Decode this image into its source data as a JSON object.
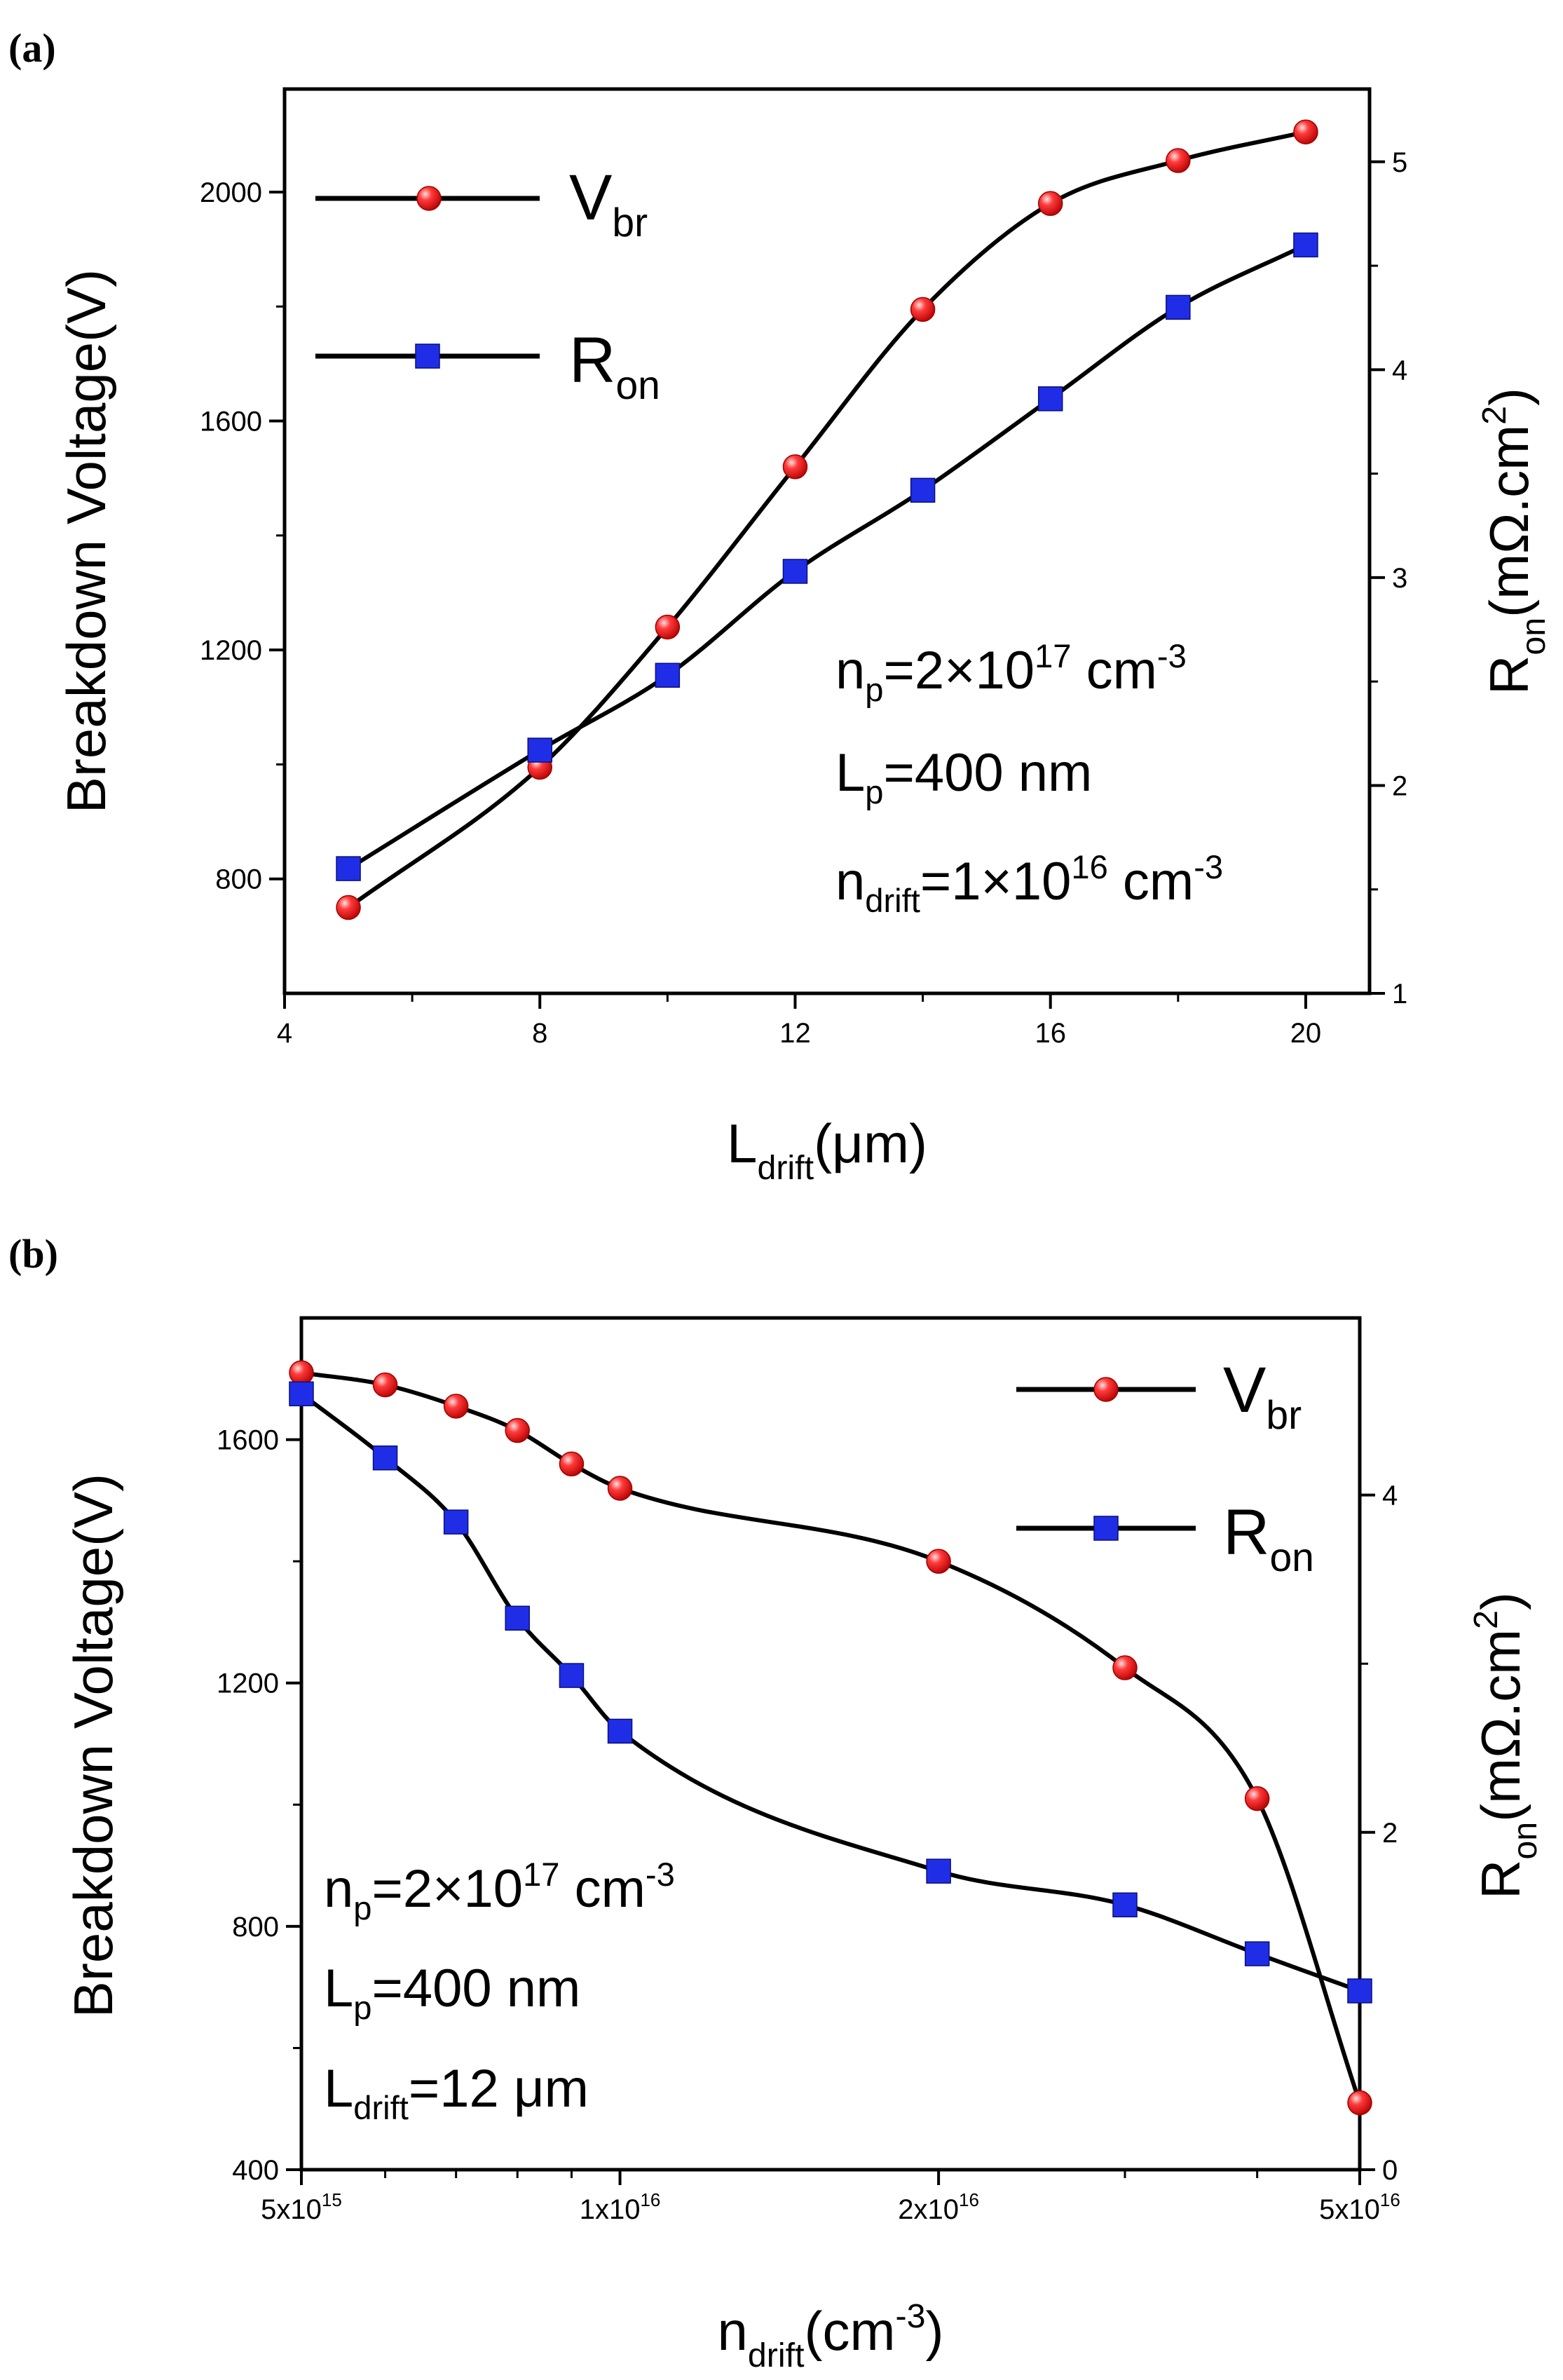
{
  "chart_data": [
    {
      "panel": "(a)",
      "type": "line",
      "xlabel": {
        "main": "L",
        "sub": "drift",
        "rest": "(μm)"
      },
      "ylabel_left": "Breakdown Voltage(V)",
      "ylabel_right": {
        "main": "R",
        "sub": "on",
        "rest": "(mΩ.cm",
        "sup": "2",
        "close": ")"
      },
      "x_ticks": [
        "4",
        "8",
        "12",
        "16",
        "20"
      ],
      "x_tick_values": [
        4,
        8,
        12,
        16,
        20
      ],
      "y_left_ticks": [
        "800",
        "1200",
        "1600",
        "2000"
      ],
      "y_left_tick_values": [
        800,
        1200,
        1600,
        2000
      ],
      "y_right_ticks": [
        "1",
        "2",
        "3",
        "4",
        "5"
      ],
      "y_right_tick_values": [
        1,
        2,
        3,
        4,
        5
      ],
      "xlim": [
        4,
        21
      ],
      "ylim_left": [
        600,
        2180
      ],
      "ylim_right": [
        1,
        5.35
      ],
      "legend_position": "top-left",
      "series": [
        {
          "name": "V",
          "name_sub": "br",
          "axis": "left",
          "marker": "circle",
          "color": "#e8151b",
          "x": [
            5,
            8,
            10,
            12,
            14,
            16,
            18,
            20
          ],
          "y": [
            750,
            995,
            1240,
            1520,
            1795,
            1980,
            2055,
            2105
          ]
        },
        {
          "name": "R",
          "name_sub": "on",
          "axis": "right",
          "marker": "square",
          "color": "#1f2ee6",
          "x": [
            5,
            8,
            10,
            12,
            14,
            16,
            18,
            20
          ],
          "y": [
            1.6,
            2.17,
            2.53,
            3.03,
            3.42,
            3.86,
            4.3,
            4.6
          ]
        }
      ],
      "annotations": [
        {
          "main": "n",
          "sub": "p",
          "mid": "=2×10",
          "sup": "17",
          "rest": " cm",
          "sup2": "-3"
        },
        {
          "main": "L",
          "sub": "p",
          "mid": "=400 nm",
          "sup": "",
          "rest": "",
          "sup2": ""
        },
        {
          "main": "n",
          "sub": "drift",
          "mid": "=1×10",
          "sup": "16",
          "rest": " cm",
          "sup2": "-3"
        }
      ]
    },
    {
      "panel": "(b)",
      "type": "line",
      "x_scale": "log",
      "xlabel": {
        "main": "n",
        "sub": "drift",
        "rest": "(cm",
        "sup": "-3",
        "close": ")"
      },
      "ylabel_left": "Breakdown Voltage(V)",
      "ylabel_right": {
        "main": "R",
        "sub": "on",
        "rest": "(mΩ.cm",
        "sup": "2",
        "close": ")"
      },
      "x_ticks": [
        {
          "mant": "5x10",
          "exp": "15"
        },
        {
          "mant": "1x10",
          "exp": "16"
        },
        {
          "mant": "2x10",
          "exp": "16"
        },
        {
          "mant": "5x10",
          "exp": "16"
        }
      ],
      "x_tick_values": [
        5000000000000000.0,
        1e+16,
        2e+16,
        5e+16
      ],
      "x_minor_ticks": [
        6000000000000000.0,
        7000000000000000.0,
        8000000000000000.0,
        9000000000000000.0,
        3e+16,
        4e+16
      ],
      "y_left_ticks": [
        "400",
        "800",
        "1200",
        "1600"
      ],
      "y_left_tick_values": [
        400,
        800,
        1200,
        1600
      ],
      "y_right_ticks": [
        "0",
        "2",
        "4"
      ],
      "y_right_tick_values": [
        0,
        2,
        4
      ],
      "xlim": [
        5000000000000000.0,
        5e+16
      ],
      "ylim_left": [
        400,
        1800
      ],
      "ylim_right": [
        0,
        5.05
      ],
      "legend_position": "top-right",
      "series": [
        {
          "name": "V",
          "name_sub": "br",
          "axis": "left",
          "marker": "circle",
          "color": "#e8151b",
          "x": [
            5000000000000000.0,
            6000000000000000.0,
            7000000000000000.0,
            8000000000000000.0,
            9000000000000000.0,
            1e+16,
            2e+16,
            3e+16,
            4e+16,
            5e+16
          ],
          "y": [
            1710,
            1690,
            1655,
            1615,
            1560,
            1520,
            1400,
            1225,
            1010,
            510
          ]
        },
        {
          "name": "R",
          "name_sub": "on",
          "axis": "right",
          "marker": "square",
          "color": "#1f2ee6",
          "x": [
            5000000000000000.0,
            6000000000000000.0,
            7000000000000000.0,
            8000000000000000.0,
            9000000000000000.0,
            1e+16,
            2e+16,
            3e+16,
            4e+16,
            5e+16
          ],
          "y": [
            4.6,
            4.22,
            3.84,
            3.27,
            2.93,
            2.6,
            1.77,
            1.57,
            1.28,
            1.06
          ]
        }
      ],
      "annotations": [
        {
          "main": "n",
          "sub": "p",
          "mid": "=2×10",
          "sup": "17",
          "rest": " cm",
          "sup2": "-3"
        },
        {
          "main": "L",
          "sub": "p",
          "mid": "=400 nm",
          "sup": "",
          "rest": "",
          "sup2": ""
        },
        {
          "main": "L",
          "sub": "drift",
          "mid": "=12 μm",
          "sup": "",
          "rest": "",
          "sup2": ""
        }
      ]
    }
  ]
}
